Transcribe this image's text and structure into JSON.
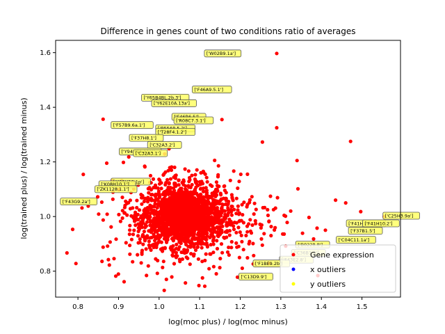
{
  "chart_data": {
    "type": "scatter",
    "title": "Difference in genes count of two conditions ratio of averages",
    "xlabel": "log(moc plus) / log(moc minus)",
    "ylabel": "log(trained plus) / log(trained minus)",
    "xlim": [
      0.745,
      1.595
    ],
    "ylim": [
      0.705,
      1.645
    ],
    "xticks": [
      "0.8",
      "0.9",
      "1.0",
      "1.1",
      "1.2",
      "1.3",
      "1.4",
      "1.5"
    ],
    "yticks": [
      "0.8",
      "1.0",
      "1.2",
      "1.4",
      "1.6"
    ],
    "colors": {
      "gene": "#ff0000",
      "x_outliers": "#0000ff",
      "y_outliers": "#ffff00",
      "annotation_fill": "#ffff66",
      "annotation_edge": "#555555"
    },
    "legend": {
      "placement": "lower-right",
      "entries": [
        "Gene expression",
        "x outliers",
        "y outliers"
      ]
    },
    "cluster": {
      "center": [
        1.06,
        1.0
      ],
      "note": "dense cloud of ~2000 red points"
    },
    "extreme_points": [
      {
        "x": 0.787,
        "y": 0.953
      },
      {
        "x": 0.795,
        "y": 0.828
      },
      {
        "x": 0.862,
        "y": 0.888
      },
      {
        "x": 1.29,
        "y": 1.597
      },
      {
        "x": 1.472,
        "y": 1.275
      },
      {
        "x": 1.497,
        "y": 1.018
      },
      {
        "x": 1.555,
        "y": 1.0
      },
      {
        "x": 1.435,
        "y": 1.06
      },
      {
        "x": 1.46,
        "y": 1.05
      },
      {
        "x": 1.065,
        "y": 0.757
      },
      {
        "x": 1.018,
        "y": 0.77
      },
      {
        "x": 1.29,
        "y": 1.325
      },
      {
        "x": 1.155,
        "y": 1.355
      },
      {
        "x": 1.34,
        "y": 1.205
      },
      {
        "x": 1.41,
        "y": 0.95
      }
    ],
    "annotations": [
      {
        "label": "['W02B9.1a']",
        "x": 1.115,
        "y": 1.597
      },
      {
        "label": "['F46A9.5.1']",
        "x": 1.085,
        "y": 1.465
      },
      {
        "label": "['Y65B4BL.2b.3']",
        "x": 0.96,
        "y": 1.435
      },
      {
        "label": "['Y62E10A.13a']",
        "x": 0.985,
        "y": 1.415
      },
      {
        "label": "['F46B6.5']",
        "x": 1.035,
        "y": 1.365
      },
      {
        "label": "['R08C7.3.1']",
        "x": 1.04,
        "y": 1.352
      },
      {
        "label": "['F57B9.6a.1']",
        "x": 0.885,
        "y": 1.335
      },
      {
        "label": "['B5568.5.2']",
        "x": 0.995,
        "y": 1.323
      },
      {
        "label": "['T28F4.1.2']",
        "x": 0.995,
        "y": 1.31
      },
      {
        "label": "['F37H8.1']",
        "x": 0.93,
        "y": 1.288
      },
      {
        "label": "['C32A3.2']",
        "x": 0.975,
        "y": 1.262
      },
      {
        "label": "['Y94H6A.11a']",
        "x": 0.905,
        "y": 1.238
      },
      {
        "label": "['C32A3.1']",
        "x": 0.94,
        "y": 1.232
      },
      {
        "label": "['K08H10.1p']",
        "x": 0.885,
        "y": 1.128
      },
      {
        "label": "['K08H10.1']",
        "x": 0.855,
        "y": 1.118
      },
      {
        "label": "['ZK1128.1.1']",
        "x": 0.845,
        "y": 1.1
      },
      {
        "label": "['F43G9.2a']",
        "x": 0.76,
        "y": 1.055
      },
      {
        "label": "['C25H3.9a']",
        "x": 1.555,
        "y": 1.003
      },
      {
        "label": "['F41H10.7a']",
        "x": 1.465,
        "y": 0.975
      },
      {
        "label": "['F41H10.2']",
        "x": 1.505,
        "y": 0.975
      },
      {
        "label": "['F37B1.5']",
        "x": 1.47,
        "y": 0.948
      },
      {
        "label": "['C04C11.1a']",
        "x": 1.44,
        "y": 0.915
      },
      {
        "label": "['B0228.8']",
        "x": 1.34,
        "y": 0.897
      },
      {
        "label": "['C36B1.2']",
        "x": 1.33,
        "y": 0.867
      },
      {
        "label": "['F43E2.8']",
        "x": 1.3,
        "y": 0.842
      },
      {
        "label": "['F1BE9.2b']",
        "x": 1.235,
        "y": 0.828
      },
      {
        "label": "['C13D9.9']",
        "x": 1.2,
        "y": 0.78
      }
    ]
  }
}
